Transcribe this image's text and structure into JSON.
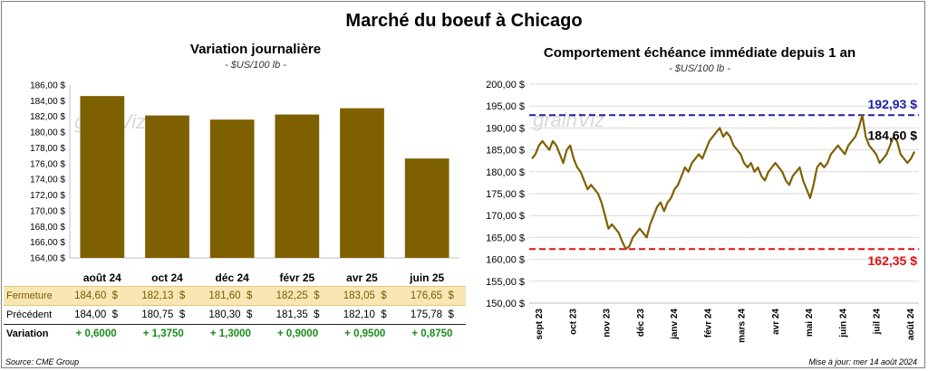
{
  "title": "Marché du boeuf à Chicago",
  "left": {
    "title": "Variation  journalière",
    "unit": "- $US/100 lb -",
    "watermark": "grainViz"
  },
  "right": {
    "title": "Comportement  échéance  immédiate  depuis  1 an",
    "unit": "- $US/100 lb -",
    "watermark": "grainViz",
    "max_label": "192,93 $",
    "last_label": "184,60 $",
    "min_label": "162,35 $"
  },
  "table": {
    "columns": [
      "août 24",
      "oct 24",
      "déc 24",
      "févr 25",
      "avr 25",
      "juin 25"
    ],
    "rows": [
      {
        "label": "Fermeture",
        "values": [
          "184,60",
          "182,13",
          "181,60",
          "182,25",
          "183,05",
          "176,65"
        ],
        "currency": "$"
      },
      {
        "label": "Précédent",
        "values": [
          "184,00",
          "180,75",
          "180,30",
          "181,35",
          "182,10",
          "175,78"
        ],
        "currency": "$"
      },
      {
        "label": "Variation",
        "values": [
          "+ 0,6000",
          "+ 1,3750",
          "+ 1,3000",
          "+ 0,9000",
          "+ 0,9500",
          "+ 0,8750"
        ],
        "currency": ""
      }
    ]
  },
  "source": "Source: CME Group",
  "updated": "Mise à jour: mer 14 août 2024",
  "colors": {
    "bar": "#7f6000",
    "line": "#7f6000",
    "max_line": "#1f1fa8",
    "min_line": "#e01010",
    "close_row": "#f8e7b4"
  },
  "chart_data": [
    {
      "type": "bar",
      "title": "Variation  journalière",
      "categories": [
        "août 24",
        "oct 24",
        "déc 24",
        "févr 25",
        "avr 25",
        "juin 25"
      ],
      "values": [
        184.6,
        182.13,
        181.6,
        182.25,
        183.05,
        176.65
      ],
      "ylim": [
        164,
        186
      ],
      "yticks": [
        "164,00 $",
        "166,00 $",
        "168,00 $",
        "170,00 $",
        "172,00 $",
        "174,00 $",
        "176,00 $",
        "178,00 $",
        "180,00 $",
        "182,00 $",
        "184,00 $",
        "186,00 $"
      ],
      "ytick_values": [
        164,
        166,
        168,
        170,
        172,
        174,
        176,
        178,
        180,
        182,
        184,
        186
      ]
    },
    {
      "type": "line",
      "title": "Comportement  échéance  immédiate  depuis  1 an",
      "ylim": [
        150,
        200
      ],
      "yticks": [
        "150,00 $",
        "155,00 $",
        "160,00 $",
        "165,00 $",
        "170,00 $",
        "175,00 $",
        "180,00 $",
        "185,00 $",
        "190,00 $",
        "195,00 $",
        "200,00 $"
      ],
      "ytick_values": [
        150,
        155,
        160,
        165,
        170,
        175,
        180,
        185,
        190,
        195,
        200
      ],
      "xticks": [
        "sept 23",
        "oct 23",
        "nov 23",
        "déc 23",
        "janv 24",
        "févr 24",
        "mars 24",
        "avr 24",
        "mai 24",
        "juin 24",
        "juil 24",
        "août 24"
      ],
      "max_value": 192.93,
      "min_value": 162.35,
      "last_value": 184.6,
      "values": [
        183,
        184,
        186,
        187,
        186,
        185,
        187,
        186,
        184,
        182,
        185,
        186,
        183,
        181,
        180,
        178,
        176,
        177,
        176,
        175,
        173,
        170,
        167,
        168,
        167,
        166,
        164,
        162.35,
        163,
        165,
        166,
        167,
        166,
        165,
        168,
        170,
        172,
        173,
        171,
        173,
        174,
        176,
        177,
        179,
        181,
        180,
        182,
        183,
        184,
        183,
        185,
        187,
        188,
        189,
        190,
        188,
        189,
        188,
        186,
        185,
        184,
        182,
        181,
        182,
        180,
        181,
        179,
        178,
        180,
        181,
        182,
        181,
        180,
        178,
        177,
        179,
        180,
        181,
        178,
        176,
        174,
        177,
        181,
        182,
        181,
        182,
        184,
        185,
        186,
        185,
        184,
        186,
        187,
        188,
        190,
        192.93,
        188,
        186,
        185,
        184,
        182,
        183,
        184,
        186,
        188,
        187,
        184,
        183,
        182,
        183,
        184.6
      ]
    }
  ]
}
